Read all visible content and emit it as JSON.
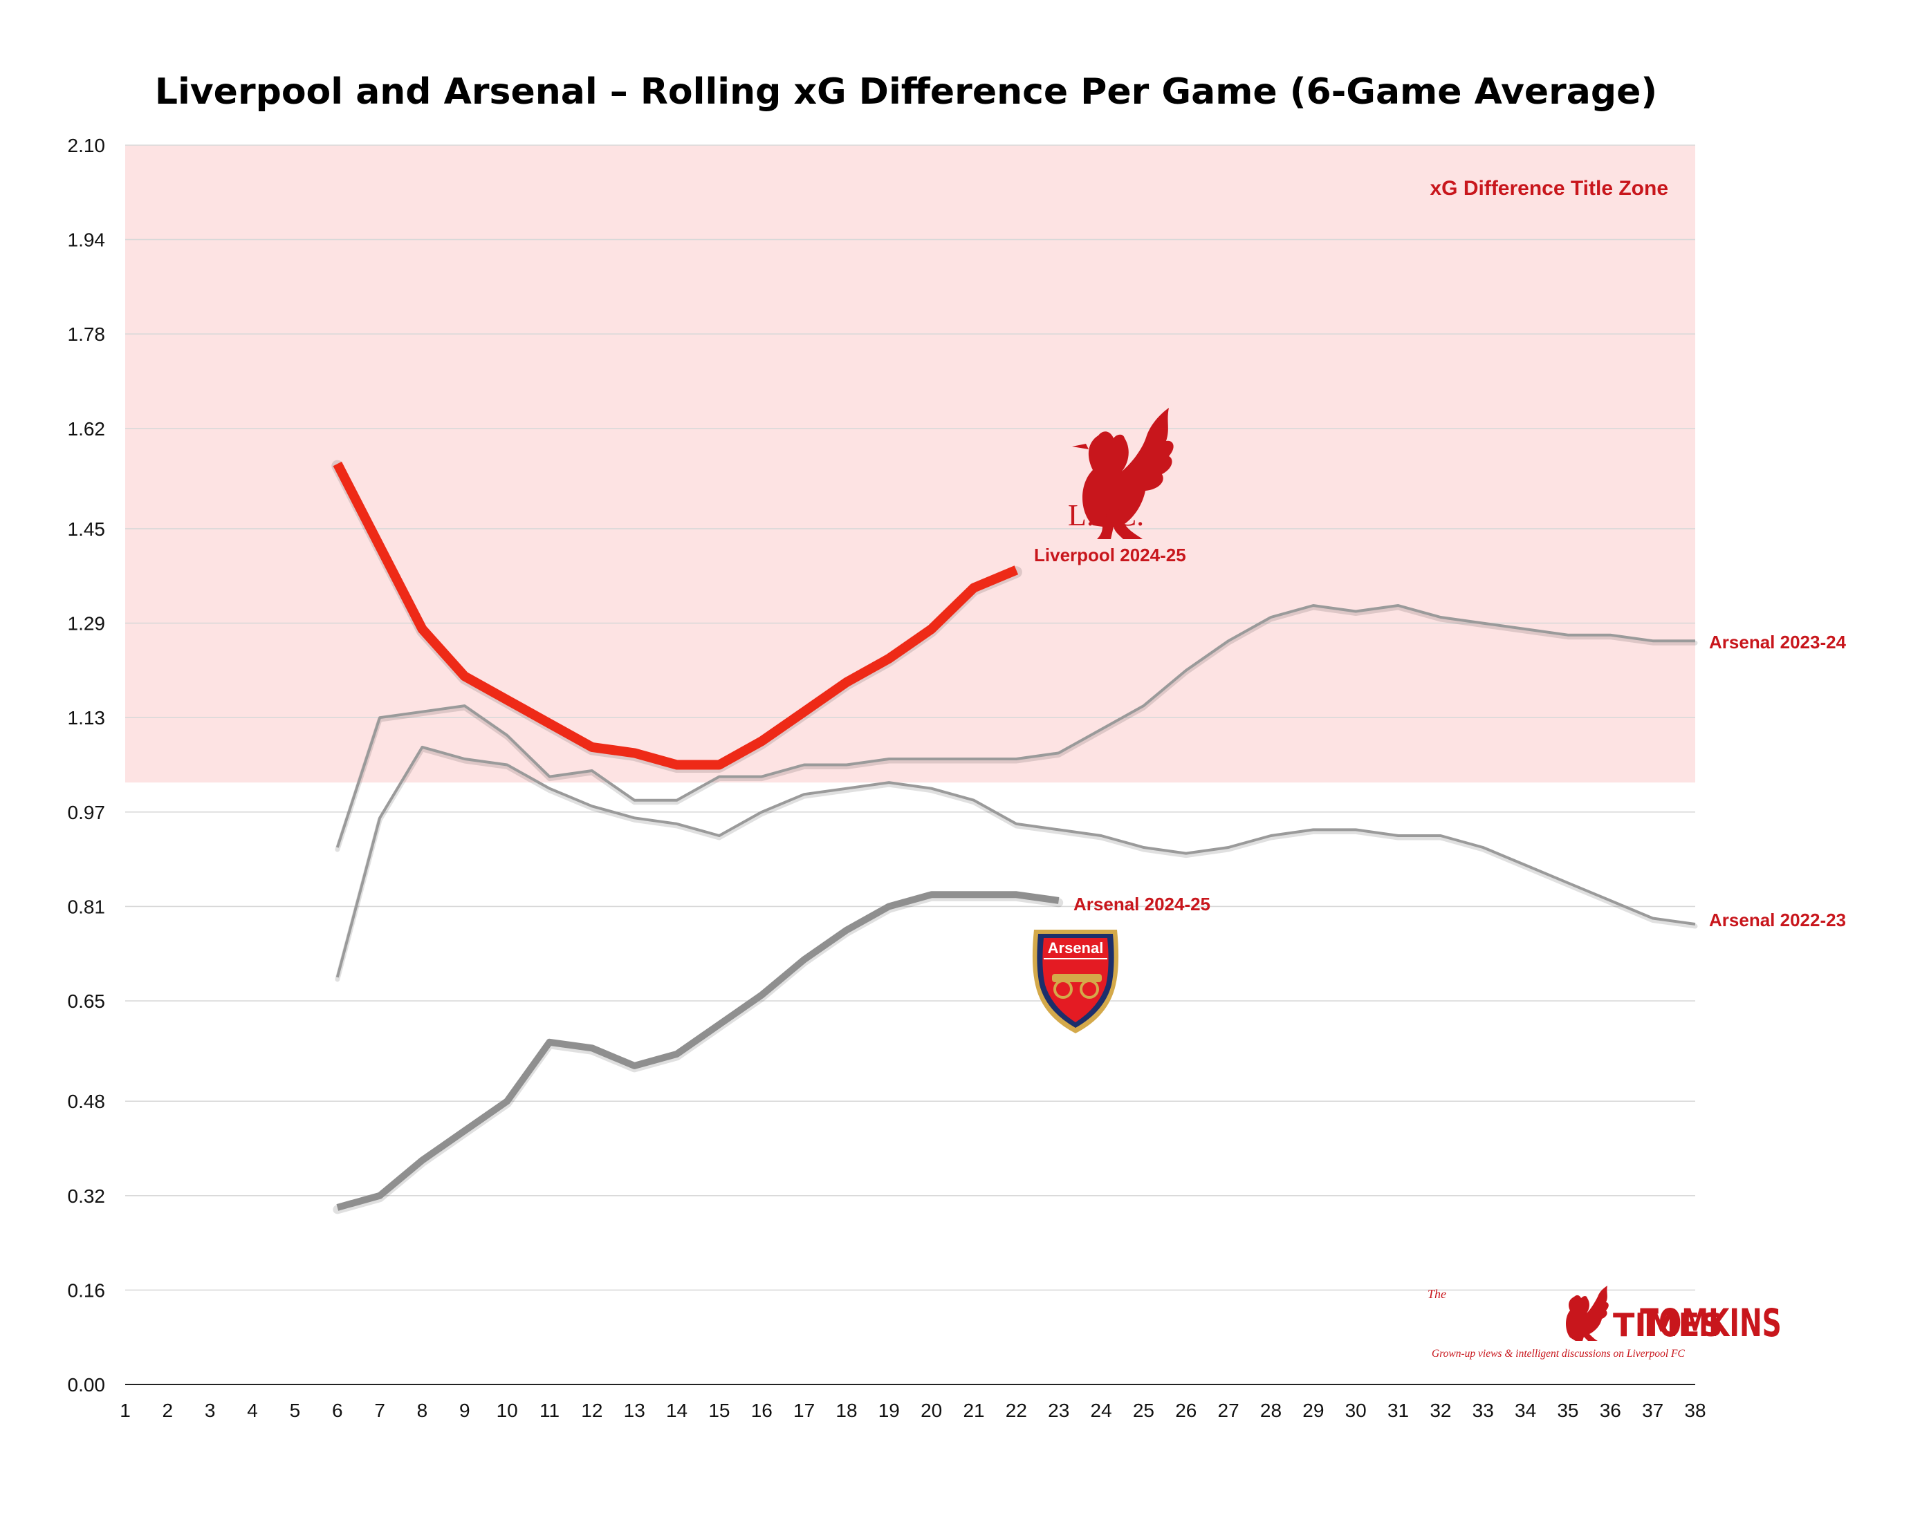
{
  "chart_data": {
    "type": "line",
    "title": "Liverpool and Arsenal – Rolling xG Difference Per Game (6-Game Average)",
    "xlabel": "",
    "ylabel": "",
    "x_ticks": [
      "1",
      "2",
      "3",
      "4",
      "5",
      "6",
      "7",
      "8",
      "9",
      "10",
      "11",
      "12",
      "13",
      "14",
      "15",
      "16",
      "17",
      "18",
      "19",
      "20",
      "21",
      "22",
      "23",
      "24",
      "25",
      "26",
      "27",
      "28",
      "29",
      "30",
      "31",
      "32",
      "33",
      "34",
      "35",
      "36",
      "37",
      "38"
    ],
    "y_ticks": [
      "0.00",
      "0.16",
      "0.32",
      "0.48",
      "0.65",
      "0.81",
      "0.97",
      "1.13",
      "1.29",
      "1.45",
      "1.62",
      "1.78",
      "1.94",
      "2.10"
    ],
    "xlim": [
      1,
      38
    ],
    "ylim": [
      0,
      2.1
    ],
    "grid": true,
    "zone": {
      "label": "xG Difference Title Zone",
      "from": 1.02,
      "to": 2.1,
      "color": "#fde3e3"
    },
    "series": [
      {
        "name": "Liverpool 2024-25",
        "color": "#ee2a17",
        "x": [
          6,
          7,
          8,
          9,
          10,
          11,
          12,
          13,
          14,
          15,
          16,
          17,
          18,
          19,
          20,
          21,
          22
        ],
        "values": [
          1.56,
          1.42,
          1.28,
          1.2,
          1.16,
          1.12,
          1.08,
          1.07,
          1.05,
          1.05,
          1.09,
          1.14,
          1.19,
          1.23,
          1.28,
          1.35,
          1.38
        ]
      },
      {
        "name": "Arsenal 2023-24",
        "color": "#9a9a9a",
        "x": [
          6,
          7,
          8,
          9,
          10,
          11,
          12,
          13,
          14,
          15,
          16,
          17,
          18,
          19,
          20,
          21,
          22,
          23,
          24,
          25,
          26,
          27,
          28,
          29,
          30,
          31,
          32,
          33,
          34,
          35,
          36,
          37,
          38
        ],
        "values": [
          0.91,
          1.13,
          1.14,
          1.15,
          1.1,
          1.03,
          1.04,
          0.99,
          0.99,
          1.03,
          1.03,
          1.05,
          1.05,
          1.06,
          1.06,
          1.06,
          1.06,
          1.07,
          1.11,
          1.15,
          1.21,
          1.26,
          1.3,
          1.32,
          1.31,
          1.32,
          1.3,
          1.29,
          1.28,
          1.27,
          1.27,
          1.26,
          1.26
        ]
      },
      {
        "name": "Arsenal 2022-23",
        "color": "#9a9a9a",
        "x": [
          6,
          7,
          8,
          9,
          10,
          11,
          12,
          13,
          14,
          15,
          16,
          17,
          18,
          19,
          20,
          21,
          22,
          23,
          24,
          25,
          26,
          27,
          28,
          29,
          30,
          31,
          32,
          33,
          34,
          35,
          36,
          37,
          38
        ],
        "values": [
          0.69,
          0.96,
          1.08,
          1.06,
          1.05,
          1.01,
          0.98,
          0.96,
          0.95,
          0.93,
          0.97,
          1.0,
          1.01,
          1.02,
          1.01,
          0.99,
          0.95,
          0.94,
          0.93,
          0.91,
          0.9,
          0.91,
          0.93,
          0.94,
          0.94,
          0.93,
          0.93,
          0.91,
          0.88,
          0.85,
          0.82,
          0.79,
          0.78
        ]
      },
      {
        "name": "Arsenal 2024-25",
        "color": "#8f8f8f",
        "x": [
          6,
          7,
          8,
          9,
          10,
          11,
          12,
          13,
          14,
          15,
          16,
          17,
          18,
          19,
          20,
          21,
          22,
          23
        ],
        "values": [
          0.3,
          0.32,
          0.38,
          0.43,
          0.48,
          0.58,
          0.57,
          0.54,
          0.56,
          0.61,
          0.66,
          0.72,
          0.77,
          0.81,
          0.83,
          0.83,
          0.83,
          0.82
        ]
      }
    ]
  },
  "labels": {
    "liverpool": "Liverpool 2024-25",
    "arsenal_2324": "Arsenal 2023-24",
    "arsenal_2223": "Arsenal 2022-23",
    "arsenal_2425": "Arsenal 2024-25"
  },
  "logos": {
    "lfc_text": "L.F.C.",
    "arsenal_text": "Arsenal",
    "tomkins_small": "The",
    "tomkins_left": "TOMKINS",
    "tomkins_right": "TIMES",
    "tomkins_tagline": "Grown-up views & intelligent discussions on Liverpool FC"
  }
}
